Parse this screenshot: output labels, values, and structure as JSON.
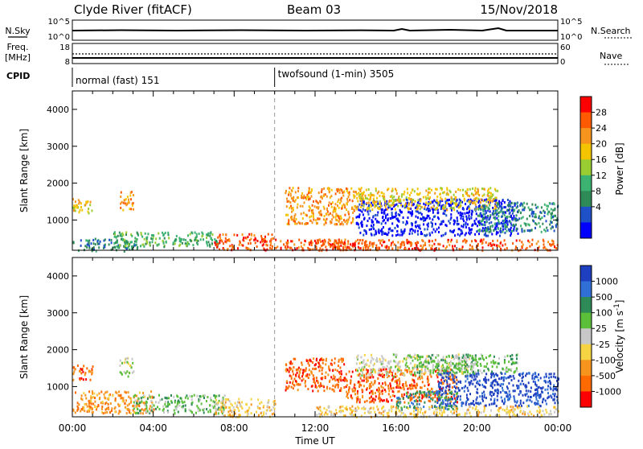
{
  "header": {
    "station": "Clyde River (fitACF)",
    "beam": "Beam 03",
    "date": "15/Nov/2018"
  },
  "summary_panels": {
    "nsky_label": "N.Sky",
    "nsky_ticks": [
      "10^5",
      "10^0"
    ],
    "nsearch_label": "N.Search",
    "nsearch_ticks": [
      "10^5",
      "10^0"
    ],
    "freq_label_1": "Freq.",
    "freq_label_2": "[MHz]",
    "freq_ticks": [
      "18",
      "8"
    ],
    "nave_label": "Nave",
    "nave_ticks": [
      "60",
      "0"
    ],
    "cpid_label": "CPID",
    "cpid_programs": [
      {
        "text": "normal (fast) 151",
        "start_hour": 0
      },
      {
        "text": "twofsound (1-min) 3505",
        "start_hour": 10.0
      }
    ]
  },
  "axes": {
    "ylabel": "Slant Range [km]",
    "yticks": [
      "1000",
      "2000",
      "3000",
      "4000"
    ],
    "xlabel": "Time UT",
    "xticks": [
      "00:00",
      "04:00",
      "08:00",
      "12:00",
      "16:00",
      "20:00",
      "00:00"
    ]
  },
  "chart_data": [
    {
      "type": "heatmap",
      "name": "Power",
      "x_range_hours": [
        0,
        24
      ],
      "y_range_km": [
        180,
        4500
      ],
      "colorbar_label": "Power [dB]",
      "colorbar_ticks": [
        "28",
        "24",
        "20",
        "16",
        "12",
        "8",
        "4"
      ],
      "colorbar_colors": [
        "#ff0000",
        "#ff5a00",
        "#f7941d",
        "#f5c400",
        "#9acd32",
        "#3cb371",
        "#2e8b57",
        "#1e50c8",
        "#0000ff"
      ],
      "regions": [
        {
          "t0": 0.0,
          "t1": 3.2,
          "r0": 180,
          "r1": 520,
          "level": 6
        },
        {
          "t0": 2.0,
          "t1": 7.2,
          "r0": 300,
          "r1": 700,
          "level": 5
        },
        {
          "t0": 0.0,
          "t1": 1.0,
          "r0": 1200,
          "r1": 1600,
          "level": 3
        },
        {
          "t0": 2.3,
          "t1": 3.0,
          "r0": 1300,
          "r1": 1800,
          "level": 2
        },
        {
          "t0": 7.0,
          "t1": 10.0,
          "r0": 200,
          "r1": 650,
          "level": 1
        },
        {
          "t0": 10.0,
          "t1": 14.5,
          "r0": 200,
          "r1": 500,
          "level": 1
        },
        {
          "t0": 10.5,
          "t1": 14.0,
          "r0": 900,
          "r1": 1900,
          "level": 2
        },
        {
          "t0": 14.0,
          "t1": 22.0,
          "r0": 600,
          "r1": 1600,
          "level": 8
        },
        {
          "t0": 14.0,
          "t1": 21.0,
          "r0": 1300,
          "r1": 1900,
          "level": 3
        },
        {
          "t0": 20.0,
          "t1": 24.0,
          "r0": 700,
          "r1": 1500,
          "level": 6
        },
        {
          "t0": 12.0,
          "t1": 24.0,
          "r0": 200,
          "r1": 500,
          "level": 1
        }
      ]
    },
    {
      "type": "heatmap",
      "name": "Velocity",
      "x_range_hours": [
        0,
        24
      ],
      "y_range_km": [
        180,
        4500
      ],
      "colorbar_label": "Velocity [m s^-1]",
      "colorbar_ticks": [
        "1000",
        "500",
        "100",
        "25",
        "-25",
        "-100",
        "-500",
        "-1000"
      ],
      "colorbar_colors": [
        "#1e3fbf",
        "#2f6fd6",
        "#2e8b57",
        "#5bbf3a",
        "#c8c8c8",
        "#f5d342",
        "#f7941d",
        "#ff6a00",
        "#ff0000"
      ],
      "regions": [
        {
          "t0": 0.0,
          "t1": 4.0,
          "r0": 300,
          "r1": 900,
          "level": 6
        },
        {
          "t0": 3.0,
          "t1": 7.5,
          "r0": 300,
          "r1": 800,
          "level": 3
        },
        {
          "t0": 0.0,
          "t1": 1.0,
          "r0": 1200,
          "r1": 1600,
          "level": 7
        },
        {
          "t0": 2.3,
          "t1": 3.0,
          "r0": 1300,
          "r1": 1800,
          "level": 4
        },
        {
          "t0": 7.0,
          "t1": 10.0,
          "r0": 200,
          "r1": 700,
          "level": 5
        },
        {
          "t0": 10.5,
          "t1": 13.5,
          "r0": 900,
          "r1": 1800,
          "level": 7
        },
        {
          "t0": 13.5,
          "t1": 19.0,
          "r0": 600,
          "r1": 1500,
          "level": 7
        },
        {
          "t0": 14.0,
          "t1": 20.0,
          "r0": 1300,
          "r1": 1900,
          "level": 4
        },
        {
          "t0": 17.0,
          "t1": 22.0,
          "r0": 1400,
          "r1": 1900,
          "level": 3
        },
        {
          "t0": 18.0,
          "t1": 24.0,
          "r0": 500,
          "r1": 1400,
          "level": 0
        },
        {
          "t0": 16.0,
          "t1": 19.0,
          "r0": 400,
          "r1": 900,
          "level": 2
        },
        {
          "t0": 12.0,
          "t1": 24.0,
          "r0": 200,
          "r1": 500,
          "level": 5
        }
      ]
    }
  ]
}
